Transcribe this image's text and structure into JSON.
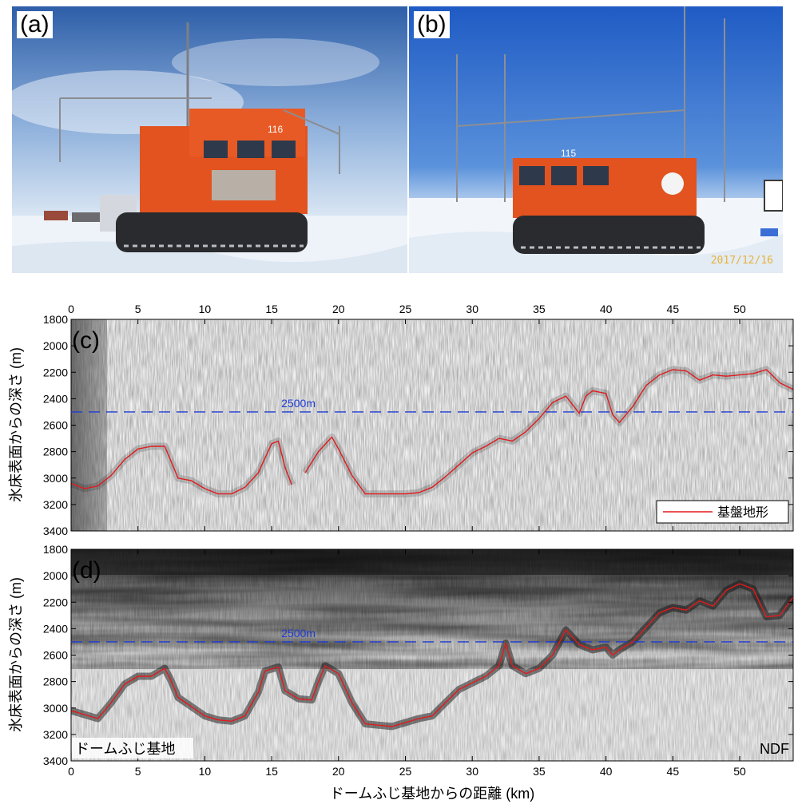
{
  "panels": {
    "a": {
      "label": "(a)"
    },
    "b": {
      "label": "(b)",
      "date_stamp": "2017/12/16"
    },
    "c": {
      "label": "(c)",
      "line_label": "2500m",
      "legend": "基盤地形"
    },
    "d": {
      "label": "(d)",
      "line_label": "2500m",
      "left_annotation": "ドームふじ基地",
      "right_annotation": "NDF"
    }
  },
  "vehicles": {
    "a_number": "116",
    "b_number": "115"
  },
  "axes": {
    "xlabel": "ドームふじ基地からの距離 (km)",
    "ylabel": "氷床表面からの深さ (m)",
    "x_ticks": [
      0,
      5,
      10,
      15,
      20,
      25,
      30,
      35,
      40,
      45,
      50
    ],
    "y_ticks": [
      1800,
      2000,
      2200,
      2400,
      2600,
      2800,
      3000,
      3200,
      3400
    ]
  },
  "chart_data": [
    {
      "type": "line",
      "panel": "(c)",
      "xlim": [
        0,
        54
      ],
      "ylim": [
        3400,
        1800
      ],
      "reference_depth": 2500,
      "series": [
        {
          "name": "基盤地形",
          "color": "#e31a1c",
          "segments": [
            [
              [
                0,
                3040
              ],
              [
                1,
                3080
              ],
              [
                2,
                3060
              ],
              [
                3,
                2980
              ],
              [
                4,
                2860
              ],
              [
                5,
                2780
              ],
              [
                6,
                2760
              ],
              [
                7,
                2760
              ],
              [
                7.5,
                2880
              ],
              [
                8,
                3000
              ],
              [
                9,
                3020
              ],
              [
                10,
                3080
              ],
              [
                11,
                3120
              ],
              [
                12,
                3120
              ],
              [
                13,
                3070
              ],
              [
                14,
                2960
              ],
              [
                15,
                2740
              ],
              [
                15.5,
                2720
              ],
              [
                16,
                2920
              ],
              [
                16.5,
                3050
              ]
            ],
            [
              [
                17.5,
                2960
              ],
              [
                18.5,
                2800
              ],
              [
                19.5,
                2690
              ],
              [
                20,
                2780
              ],
              [
                21,
                2980
              ],
              [
                22,
                3120
              ],
              [
                23,
                3120
              ],
              [
                24,
                3120
              ],
              [
                25,
                3120
              ],
              [
                26,
                3110
              ],
              [
                27,
                3070
              ],
              [
                28,
                2990
              ],
              [
                29,
                2900
              ],
              [
                30,
                2810
              ],
              [
                31,
                2760
              ],
              [
                32,
                2700
              ],
              [
                33,
                2720
              ],
              [
                34,
                2650
              ],
              [
                35,
                2550
              ],
              [
                36,
                2430
              ],
              [
                37,
                2380
              ],
              [
                38,
                2510
              ],
              [
                38.5,
                2380
              ],
              [
                39,
                2340
              ],
              [
                40,
                2360
              ],
              [
                40.5,
                2520
              ],
              [
                41,
                2580
              ],
              [
                42,
                2460
              ],
              [
                43,
                2300
              ],
              [
                44,
                2220
              ],
              [
                45,
                2180
              ],
              [
                46,
                2190
              ],
              [
                47,
                2260
              ],
              [
                48,
                2220
              ],
              [
                49,
                2230
              ],
              [
                50,
                2220
              ],
              [
                51,
                2210
              ],
              [
                52,
                2180
              ],
              [
                53,
                2280
              ],
              [
                54,
                2330
              ]
            ]
          ]
        }
      ]
    },
    {
      "type": "line",
      "panel": "(d)",
      "xlim": [
        0,
        54
      ],
      "ylim": [
        3400,
        1800
      ],
      "reference_depth": 2500,
      "series": [
        {
          "color": "#e31a1c",
          "segments": [
            [
              [
                0,
                3020
              ],
              [
                1,
                3050
              ],
              [
                2,
                3080
              ],
              [
                3,
                2960
              ],
              [
                4,
                2820
              ],
              [
                5,
                2760
              ],
              [
                6,
                2760
              ],
              [
                7,
                2700
              ],
              [
                7.5,
                2800
              ],
              [
                8,
                2920
              ],
              [
                9,
                2990
              ],
              [
                10,
                3060
              ],
              [
                11,
                3090
              ],
              [
                12,
                3100
              ],
              [
                13,
                3060
              ],
              [
                14,
                2880
              ],
              [
                14.5,
                2720
              ],
              [
                15.5,
                2690
              ],
              [
                16,
                2870
              ],
              [
                17,
                2930
              ],
              [
                18,
                2940
              ],
              [
                18.5,
                2800
              ],
              [
                19,
                2680
              ],
              [
                20,
                2740
              ],
              [
                21,
                2960
              ],
              [
                22,
                3120
              ],
              [
                23,
                3130
              ],
              [
                24,
                3140
              ],
              [
                25,
                3110
              ],
              [
                26,
                3080
              ],
              [
                27,
                3060
              ],
              [
                28,
                2960
              ],
              [
                29,
                2860
              ],
              [
                30,
                2810
              ],
              [
                31,
                2760
              ],
              [
                32,
                2680
              ],
              [
                32.5,
                2510
              ],
              [
                33,
                2680
              ],
              [
                34,
                2740
              ],
              [
                35,
                2700
              ],
              [
                36,
                2600
              ],
              [
                37,
                2410
              ],
              [
                38,
                2520
              ],
              [
                39,
                2560
              ],
              [
                40,
                2540
              ],
              [
                40.5,
                2600
              ],
              [
                41,
                2560
              ],
              [
                42,
                2500
              ],
              [
                43,
                2390
              ],
              [
                44,
                2280
              ],
              [
                45,
                2240
              ],
              [
                46,
                2260
              ],
              [
                47,
                2190
              ],
              [
                48,
                2230
              ],
              [
                49,
                2110
              ],
              [
                50,
                2060
              ],
              [
                51,
                2100
              ],
              [
                52,
                2310
              ],
              [
                53,
                2300
              ],
              [
                54,
                2160
              ]
            ]
          ]
        }
      ]
    }
  ]
}
